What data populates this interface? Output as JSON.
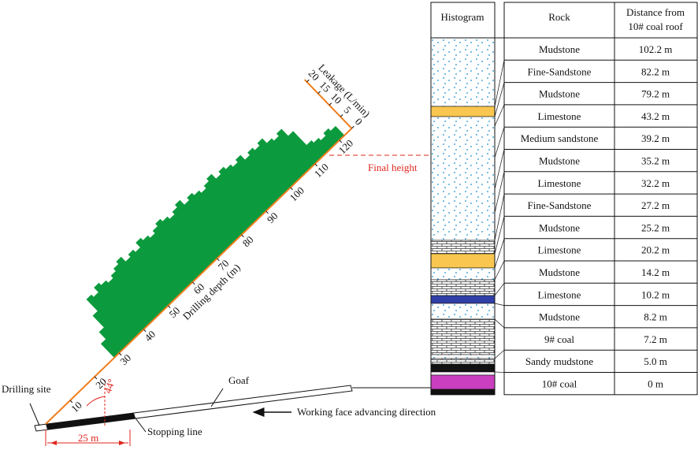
{
  "borehole": {
    "depth_label": "Drilling depth (m)",
    "leakage_label": "Leakage (L/min)",
    "depth_ticks": [
      10,
      20,
      30,
      40,
      50,
      60,
      70,
      80,
      90,
      100,
      110,
      120
    ],
    "leakage_ticks": [
      0,
      5,
      10,
      15,
      20
    ],
    "depth": [
      28,
      30,
      32,
      34,
      36,
      38,
      40,
      42,
      44,
      46,
      48,
      50,
      52,
      54,
      56,
      58,
      60,
      62,
      64,
      66,
      68,
      70,
      72,
      74,
      76,
      78,
      80,
      82,
      84,
      86,
      88,
      90,
      92,
      94,
      96,
      98,
      100,
      102,
      104,
      106,
      108,
      110,
      112,
      114,
      116,
      118,
      120
    ],
    "leakage": [
      6,
      9,
      14,
      19,
      18,
      20,
      19,
      18,
      19,
      20,
      21,
      19,
      20,
      19,
      21,
      20,
      19,
      20,
      21,
      20,
      19,
      20,
      21,
      19,
      20,
      19,
      18,
      19,
      20,
      18,
      19,
      18,
      17,
      18,
      16,
      17,
      16,
      17,
      15,
      14,
      15,
      12,
      6,
      5,
      4,
      5,
      4
    ],
    "color": "#0b9a3d",
    "axis_color": "#f07d1a",
    "angle": 44
  },
  "labels": {
    "final_height": "Final height",
    "drilling_site": "Drilling site",
    "goaf": "Goaf",
    "advancing": "Working face advancing direction",
    "stopping_line": "Stopping line",
    "distance": "25 m",
    "angle": "44°"
  },
  "table": {
    "header": [
      "Histogram",
      "Rock",
      [
        "Distance from",
        "10# coal roof"
      ]
    ],
    "rows": [
      [
        "Mudstone",
        "102.2 m"
      ],
      [
        "Fine-Sandstone",
        "82.2 m"
      ],
      [
        "Mudstone",
        "79.2 m"
      ],
      [
        "Limestone",
        "43.2 m"
      ],
      [
        "Medium sandstone",
        "39.2 m"
      ],
      [
        "Mudstone",
        "35.2 m"
      ],
      [
        "Limestone",
        "32.2 m"
      ],
      [
        "Fine-Sandstone",
        "27.2 m"
      ],
      [
        "Mudstone",
        "25.2 m"
      ],
      [
        "Limestone",
        "20.2 m"
      ],
      [
        "Mudstone",
        "14.2 m"
      ],
      [
        "Limestone",
        "10.2 m"
      ],
      [
        "Mudstone",
        "8.2 m"
      ],
      [
        "9# coal",
        "7.2 m"
      ],
      [
        "Sandy mudstone",
        "5.0 m"
      ],
      [
        "10# coal",
        "0 m"
      ]
    ]
  }
}
